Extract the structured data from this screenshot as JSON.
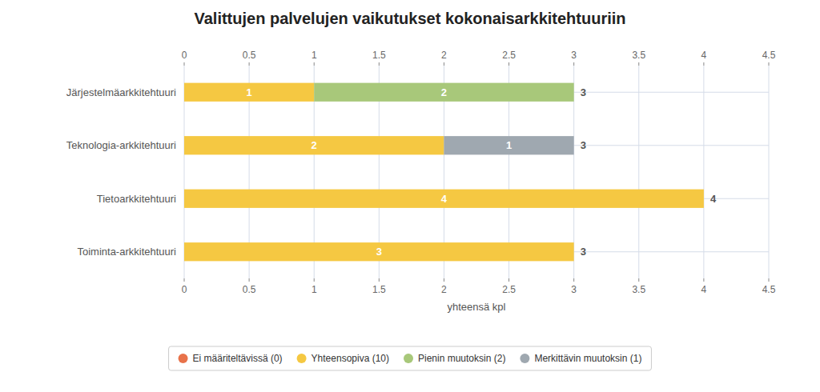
{
  "chart_data": {
    "type": "bar",
    "orientation": "horizontal",
    "stacked": true,
    "data_labels": true,
    "title": "Valittujen palvelujen vaikutukset kokonaisarkkitehtuuriin",
    "xlabel": "yhteensä kpl",
    "categories": [
      "Järjestelmäarkkitehtuuri",
      "Teknologia-arkkitehtuuri",
      "Tietoarkkitehtuuri",
      "Toiminta-arkkitehtuuri"
    ],
    "series": [
      {
        "name": "Ei määriteltävissä (0)",
        "color": "#E8724A",
        "values": [
          null,
          null,
          null,
          null
        ]
      },
      {
        "name": "Yhteensopiva (10)",
        "color": "#F5C842",
        "values": [
          1,
          2,
          4,
          3
        ]
      },
      {
        "name": "Pienin muutoksin (2)",
        "color": "#A8C87A",
        "values": [
          2,
          null,
          null,
          null
        ]
      },
      {
        "name": "Merkittävin muutoksin (1)",
        "color": "#9FA8B0",
        "values": [
          null,
          1,
          null,
          null
        ]
      }
    ],
    "totals": [
      3,
      3,
      4,
      3
    ],
    "xlim": [
      0,
      4.5
    ],
    "xticks": [
      0,
      0.5,
      1,
      1.5,
      2,
      2.5,
      3,
      3.5,
      4,
      4.5
    ],
    "grid": true,
    "legend": "bottom"
  }
}
